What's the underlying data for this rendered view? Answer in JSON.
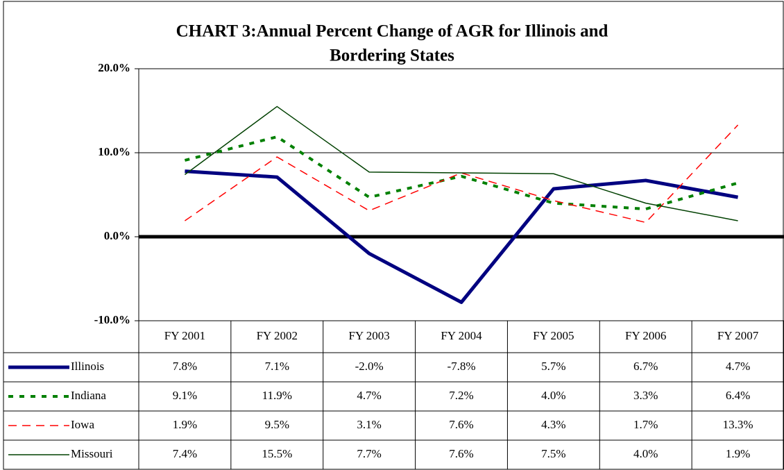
{
  "chart_data": {
    "type": "line",
    "title": [
      "CHART 3:Annual Percent Change of AGR for Illinois and",
      "Bordering States"
    ],
    "categories": [
      "FY 2001",
      "FY 2002",
      "FY 2003",
      "FY 2004",
      "FY 2005",
      "FY 2006",
      "FY 2007"
    ],
    "ylim": [
      -10,
      20
    ],
    "yticks": [
      {
        "value": -10,
        "label": "-10.0%"
      },
      {
        "value": 0,
        "label": "0.0%"
      },
      {
        "value": 10,
        "label": "10.0%"
      },
      {
        "value": 20,
        "label": "20.0%"
      }
    ],
    "grid": true,
    "series": [
      {
        "name": "Illinois",
        "color": "#000080",
        "values": [
          7.8,
          7.1,
          -2.0,
          -7.8,
          5.7,
          6.7,
          4.7
        ],
        "value_labels": [
          "7.8%",
          "7.1%",
          "-2.0%",
          "-7.8%",
          "5.7%",
          "6.7%",
          "4.7%"
        ]
      },
      {
        "name": "Indiana",
        "color": "#008000",
        "values": [
          9.1,
          11.9,
          4.7,
          7.2,
          4.0,
          3.3,
          6.4
        ],
        "value_labels": [
          "9.1%",
          "11.9%",
          "4.7%",
          "7.2%",
          "4.0%",
          "3.3%",
          "6.4%"
        ]
      },
      {
        "name": "Iowa",
        "color": "#ff0000",
        "values": [
          1.9,
          9.5,
          3.1,
          7.6,
          4.3,
          1.7,
          13.3
        ],
        "value_labels": [
          "1.9%",
          "9.5%",
          "3.1%",
          "7.6%",
          "4.3%",
          "1.7%",
          "13.3%"
        ]
      },
      {
        "name": "Missouri",
        "color": "#004000",
        "values": [
          7.4,
          15.5,
          7.7,
          7.6,
          7.5,
          4.0,
          1.9
        ],
        "value_labels": [
          "7.4%",
          "15.5%",
          "7.7%",
          "7.6%",
          "7.5%",
          "4.0%",
          "1.9%"
        ]
      }
    ]
  }
}
